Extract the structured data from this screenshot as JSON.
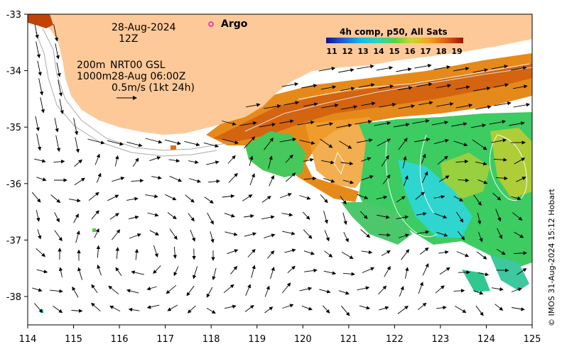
{
  "map": {
    "date": "28-Aug-2024",
    "hour": "12Z",
    "legend_argo": "Argo",
    "info_line1_a": "200m",
    "info_line1_b": "NRT00 GSL",
    "info_line2_a": "1000m",
    "info_line2_b": "28-Aug 06:00Z",
    "scale_label": "0.5m/s (1kt 24h)",
    "colorbar_title": "4h comp, p50, All Sats",
    "colorbar_ticks": [
      "11",
      "12",
      "13",
      "14",
      "15",
      "16",
      "17",
      "18",
      "19"
    ],
    "credit": "© IMOS 31-Aug-2024 15:12 Hobart",
    "x_ticks": [
      "114",
      "115",
      "116",
      "117",
      "118",
      "119",
      "120",
      "121",
      "122",
      "123",
      "124",
      "125"
    ],
    "y_ticks": [
      "-33",
      "-34",
      "-35",
      "-36",
      "-37",
      "-38"
    ],
    "colors": {
      "land": "#fdc998",
      "ocean_background": "#ffffff",
      "warm_sst": "#e0700a",
      "mid_sst": "#3ed07a",
      "cool_sst": "#2ed6cf",
      "argo_marker": "#e020c0"
    }
  }
}
